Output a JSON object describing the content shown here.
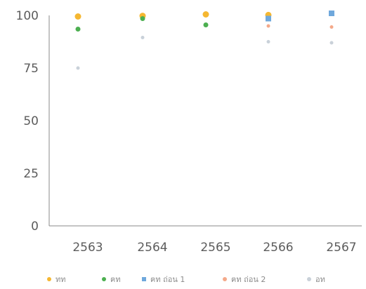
{
  "chart_data": {
    "type": "scatter",
    "categories": [
      "2563",
      "2564",
      "2565",
      "2566",
      "2567"
    ],
    "y_ticks": [
      "0",
      "25",
      "50",
      "75",
      "100"
    ],
    "ylim": [
      0,
      100
    ],
    "title": "",
    "xlabel": "",
    "ylabel": "",
    "grid": false,
    "legend_position": "bottom",
    "series": [
      {
        "name": "ทท",
        "color": "#f5b731",
        "marker": "circle",
        "values": [
          99.5,
          99.8,
          100.5,
          100.2,
          null
        ]
      },
      {
        "name": "ฅท",
        "color": "#4caf50",
        "marker": "circle",
        "values": [
          93.5,
          98.5,
          95.5,
          null,
          null
        ]
      },
      {
        "name": "ฅท ถ่อน 1",
        "color": "#6fa8dc",
        "marker": "square",
        "values": [
          null,
          null,
          null,
          98.5,
          101.0
        ]
      },
      {
        "name": "ฅท ถ่อน 2",
        "color": "#f4a98a",
        "marker": "circle",
        "values": [
          null,
          null,
          null,
          95.0,
          94.5
        ]
      },
      {
        "name": "อท",
        "color": "#c9d1d9",
        "marker": "circle",
        "values": [
          75.0,
          89.5,
          null,
          87.5,
          87.0
        ]
      }
    ]
  }
}
